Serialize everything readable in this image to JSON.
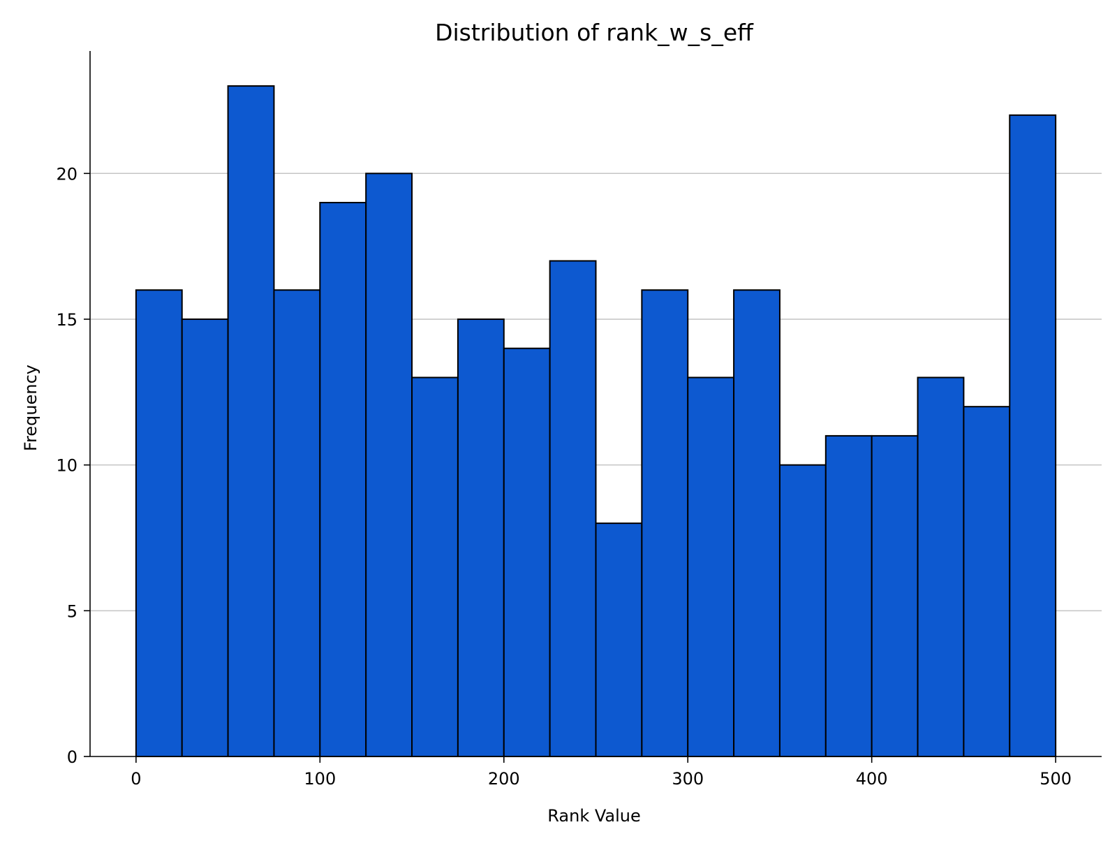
{
  "chart_data": {
    "type": "bar",
    "title": "Distribution of rank_w_s_eff",
    "xlabel": "Rank Value",
    "ylabel": "Frequency",
    "bin_edges": [
      0,
      25,
      50,
      75,
      100,
      125,
      150,
      175,
      200,
      225,
      250,
      275,
      300,
      325,
      350,
      375,
      400,
      425,
      450,
      475,
      500
    ],
    "values": [
      16,
      15,
      23,
      16,
      19,
      20,
      13,
      15,
      14,
      17,
      8,
      16,
      13,
      16,
      10,
      11,
      11,
      13,
      12,
      22
    ],
    "xlim": [
      -25,
      525
    ],
    "ylim": [
      0,
      24.2
    ],
    "xticks": [
      0,
      100,
      200,
      300,
      400,
      500
    ],
    "yticks": [
      0,
      5,
      10,
      15,
      20
    ],
    "grid": "y-axis horizontal lines",
    "colors": {
      "bar_fill": "#0D59D0",
      "bar_edge": "#000000",
      "grid": "#c4c4c4",
      "axis": "#000000"
    }
  }
}
